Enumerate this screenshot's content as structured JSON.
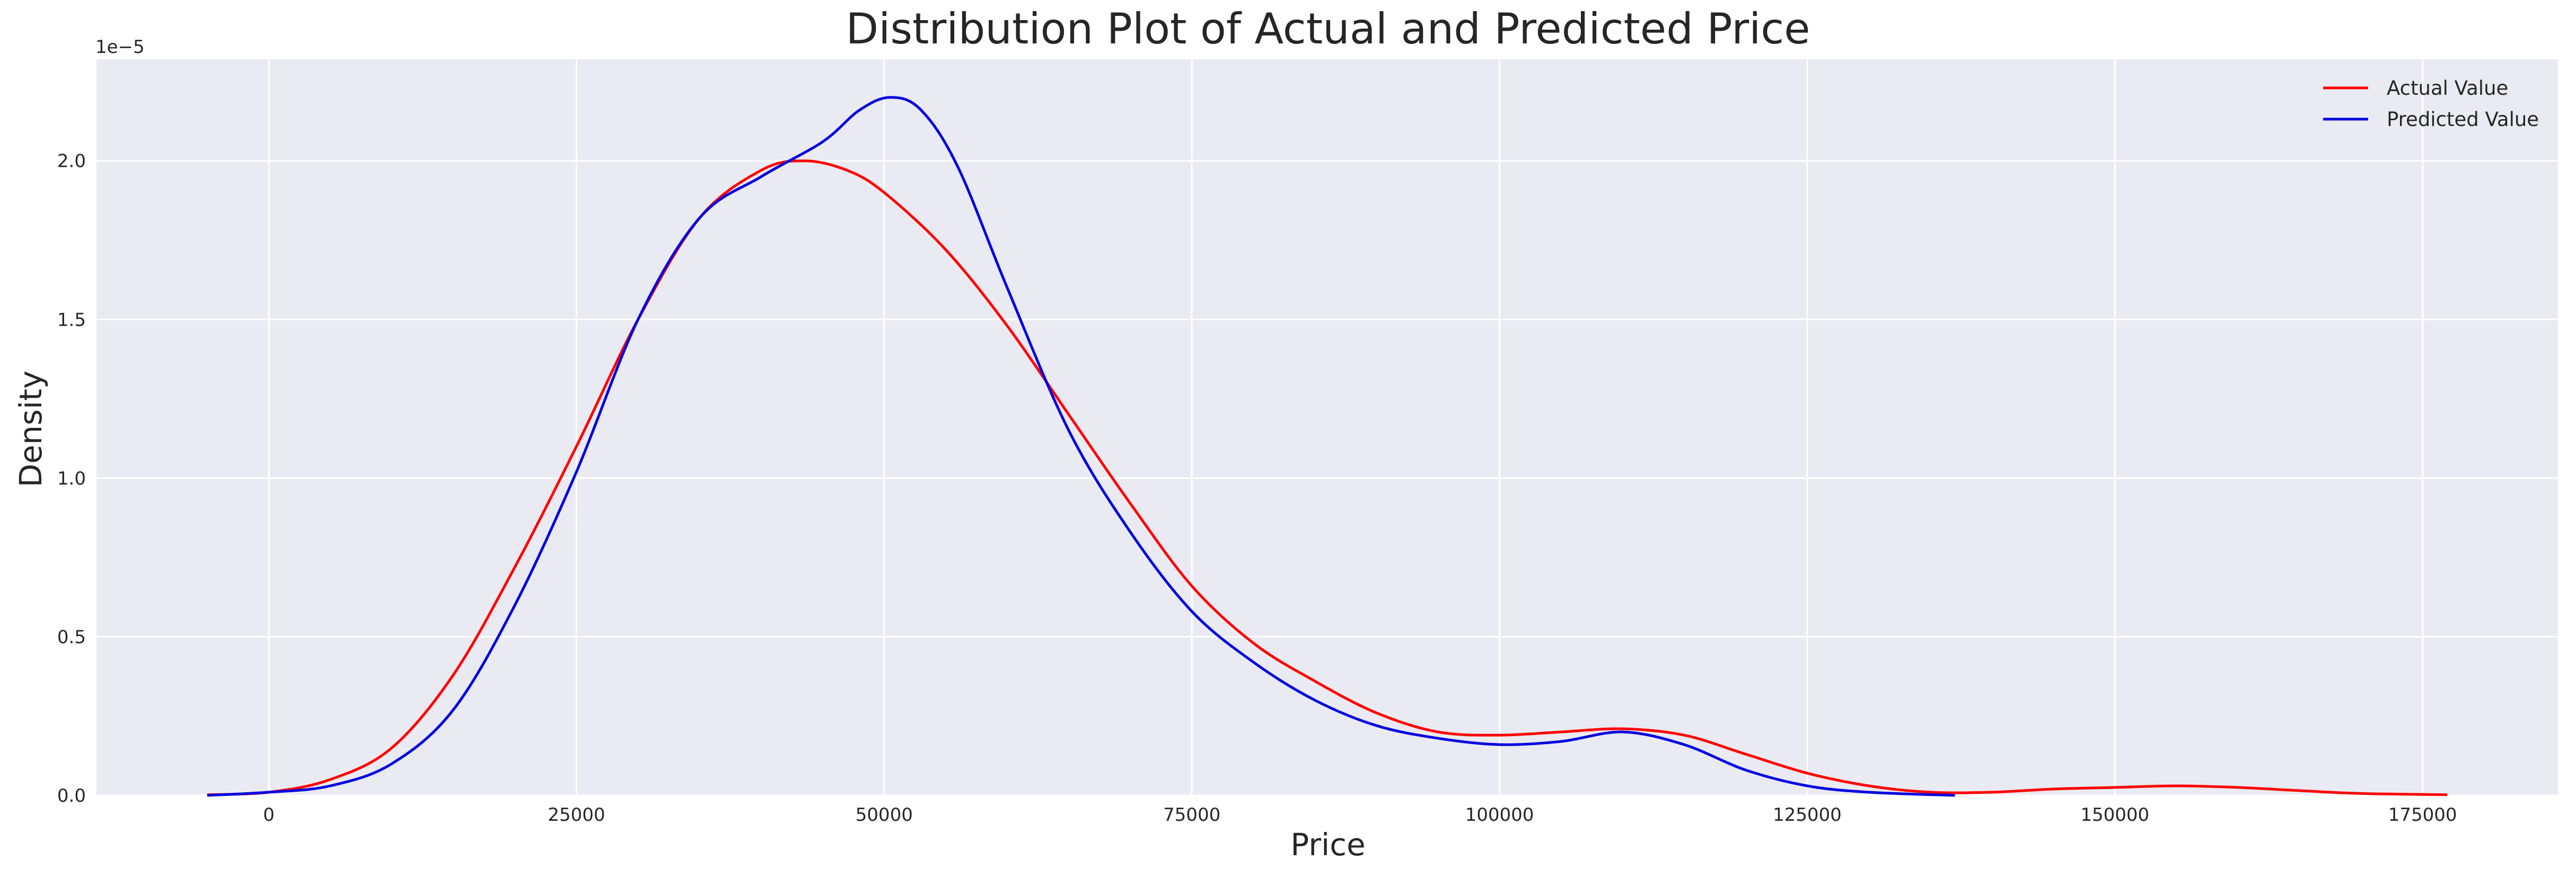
{
  "chart_data": {
    "type": "line",
    "title": "Distribution Plot of Actual and Predicted Price",
    "xlabel": "Price",
    "ylabel": "Density",
    "y_scale_note": "1e−5",
    "xlim": [
      -14000,
      186000
    ],
    "ylim": [
      0,
      2.32
    ],
    "x_ticks": [
      0,
      25000,
      50000,
      75000,
      100000,
      125000,
      150000,
      175000
    ],
    "x_tick_labels": [
      "0",
      "25000",
      "50000",
      "75000",
      "100000",
      "125000",
      "150000",
      "175000"
    ],
    "y_ticks": [
      0,
      0.5,
      1.0,
      1.5,
      2.0
    ],
    "y_tick_labels": [
      "0.0",
      "0.5",
      "1.0",
      "1.5",
      "2.0"
    ],
    "grid": true,
    "legend_position": "top-right",
    "series": [
      {
        "name": "Actual Value",
        "color": "#ff0000",
        "x": [
          -5000,
          0,
          5000,
          10000,
          15000,
          20000,
          25000,
          30000,
          35000,
          40000,
          43500,
          47000,
          50000,
          55000,
          60000,
          65000,
          70000,
          75000,
          80000,
          85000,
          90000,
          95000,
          100000,
          105000,
          110000,
          115000,
          120000,
          125000,
          130000,
          135000,
          140000,
          145000,
          150000,
          155000,
          160000,
          165000,
          170000,
          177000
        ],
        "values": [
          0.002,
          0.01,
          0.05,
          0.15,
          0.38,
          0.72,
          1.1,
          1.5,
          1.82,
          1.97,
          2.0,
          1.97,
          1.9,
          1.72,
          1.48,
          1.2,
          0.92,
          0.66,
          0.48,
          0.36,
          0.26,
          0.2,
          0.19,
          0.2,
          0.21,
          0.19,
          0.13,
          0.07,
          0.03,
          0.01,
          0.01,
          0.02,
          0.025,
          0.03,
          0.025,
          0.015,
          0.006,
          0.002
        ]
      },
      {
        "name": "Predicted Value",
        "color": "#0000e0",
        "x": [
          -5000,
          0,
          5000,
          10000,
          15000,
          20000,
          25000,
          30000,
          35000,
          40000,
          45000,
          48000,
          50500,
          53000,
          56000,
          60000,
          65000,
          70000,
          75000,
          80000,
          85000,
          90000,
          95000,
          100000,
          105000,
          110000,
          115000,
          120000,
          125000,
          130000,
          137000
        ],
        "values": [
          0.0,
          0.01,
          0.03,
          0.1,
          0.27,
          0.6,
          1.02,
          1.5,
          1.82,
          1.95,
          2.06,
          2.16,
          2.2,
          2.16,
          1.98,
          1.6,
          1.15,
          0.83,
          0.58,
          0.42,
          0.3,
          0.22,
          0.18,
          0.16,
          0.17,
          0.2,
          0.16,
          0.08,
          0.03,
          0.01,
          0.0
        ]
      }
    ]
  }
}
